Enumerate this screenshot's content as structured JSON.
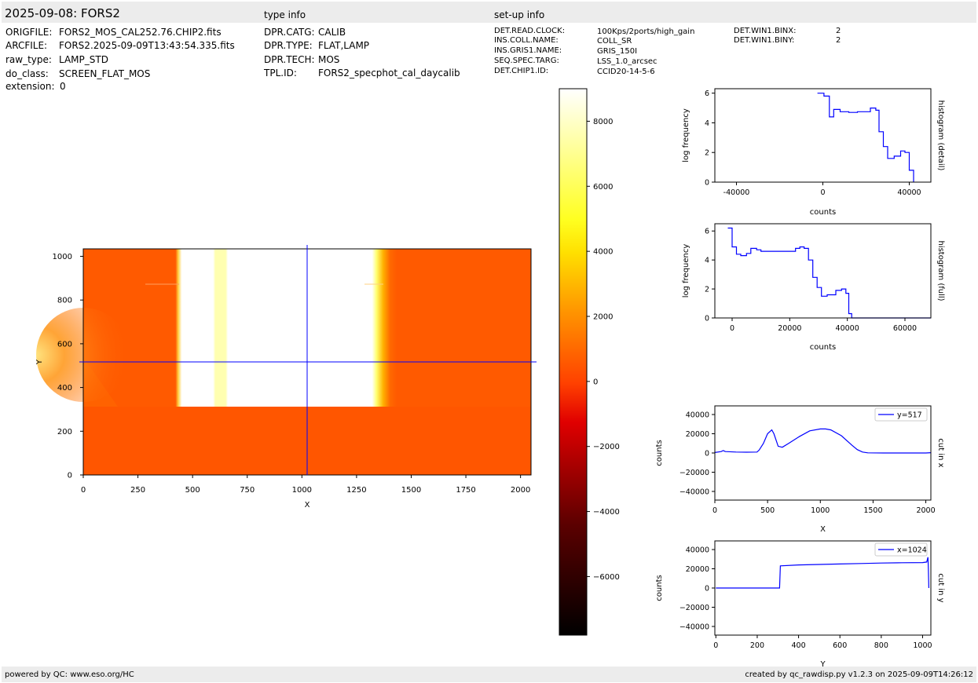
{
  "header": {
    "title": "2025-09-08: FORS2",
    "type_info_label": "type info",
    "setup_info_label": "set-up info"
  },
  "file_info": [
    {
      "key": "ORIGFILE:",
      "value": "FORS2_MOS_CAL252.76.CHIP2.fits"
    },
    {
      "key": "ARCFILE:",
      "value": "FORS2.2025-09-09T13:43:54.335.fits"
    },
    {
      "key": "raw_type:",
      "value": "LAMP_STD"
    },
    {
      "key": "do_class:",
      "value": "SCREEN_FLAT_MOS"
    },
    {
      "key": "extension:",
      "value": "0"
    }
  ],
  "type_info": [
    {
      "key": "DPR.CATG:",
      "value": "CALIB"
    },
    {
      "key": "DPR.TYPE:",
      "value": "FLAT,LAMP"
    },
    {
      "key": "DPR.TECH:",
      "value": "MOS"
    },
    {
      "key": "TPL.ID:",
      "value": "FORS2_specphot_cal_daycalib"
    }
  ],
  "setup_info": [
    {
      "key": "DET.READ.CLOCK:",
      "value": "100Kps/2ports/high_gain"
    },
    {
      "key": "INS.COLL.NAME:",
      "value": "COLL_SR"
    },
    {
      "key": "INS.GRIS1.NAME:",
      "value": "GRIS_150I"
    },
    {
      "key": "SEQ.SPEC.TARG:",
      "value": "LSS_1.0_arcsec"
    },
    {
      "key": "DET.CHIP1.ID:",
      "value": "CCID20-14-5-6"
    }
  ],
  "setup_info2": [
    {
      "key": "DET.WIN1.BINX:",
      "value": "2"
    },
    {
      "key": "DET.WIN1.BINY:",
      "value": "2"
    }
  ],
  "footer": {
    "left": "powered by QC: www.eso.org/HC",
    "right": "created by qc_rawdisp.py v1.2.3 on 2025-09-09T14:26:12"
  },
  "colors": {
    "line": "#0000ff",
    "frame": "#000000",
    "header_bg": "#ececec"
  },
  "chart_data": [
    {
      "type": "heatmap",
      "title": "",
      "xlabel": "X",
      "ylabel": "Y",
      "xlim": [
        0,
        2048
      ],
      "ylim": [
        0,
        1034
      ],
      "xticks": [
        "0",
        "250",
        "500",
        "750",
        "1000",
        "1250",
        "1500",
        "1750",
        "2000"
      ],
      "yticks": [
        "0",
        "200",
        "400",
        "600",
        "800",
        "1000"
      ],
      "colormap": "hot",
      "crosshair": {
        "x": 1024,
        "y": 517
      },
      "colorbar": {
        "range": [
          -7800,
          9000
        ],
        "ticks": [
          "8000",
          "6000",
          "4000",
          "2000",
          "0",
          "−2000",
          "−4000",
          "−6000"
        ]
      },
      "regions": [
        {
          "name": "background",
          "value": 1500
        },
        {
          "name": "bright slit band",
          "x": [
            440,
            1380
          ],
          "y": [
            310,
            1034
          ],
          "value": 9000
        }
      ]
    },
    {
      "type": "line",
      "ylabel": "log frequency",
      "xlabel": "counts",
      "side_label": "histogram (detail)",
      "xlim": [
        -50000,
        50000
      ],
      "ylim": [
        0,
        6.3
      ],
      "xticks": [
        "-40000",
        "0",
        "40000"
      ],
      "yticks": [
        "0",
        "2",
        "4",
        "6"
      ],
      "series": [
        {
          "x": [
            -2500,
            -500,
            500,
            3000,
            5000,
            8000,
            12000,
            16000,
            20000,
            22000,
            24500,
            26000,
            28000,
            30000,
            33000,
            36000,
            38000,
            40000,
            42000
          ],
          "values": [
            6.0,
            6.0,
            5.8,
            4.4,
            4.9,
            4.75,
            4.7,
            4.75,
            4.75,
            5.0,
            4.85,
            3.4,
            2.4,
            1.6,
            1.75,
            2.1,
            2.0,
            0.8,
            0
          ]
        }
      ]
    },
    {
      "type": "line",
      "ylabel": "log frequency",
      "xlabel": "counts",
      "side_label": "histogram (full)",
      "xlim": [
        -6000,
        69000
      ],
      "ylim": [
        0,
        6.5
      ],
      "xticks": [
        "0",
        "20000",
        "40000",
        "60000"
      ],
      "yticks": [
        "0",
        "2",
        "4",
        "6"
      ],
      "series": [
        {
          "x": [
            -1500,
            0,
            1500,
            3000,
            5000,
            6500,
            8500,
            10000,
            20000,
            22000,
            23500,
            25000,
            26500,
            28000,
            29500,
            31000,
            33000,
            36000,
            38000,
            39500,
            40500,
            41500,
            69000
          ],
          "values": [
            6.2,
            4.9,
            4.4,
            4.3,
            4.45,
            4.8,
            4.7,
            4.6,
            4.6,
            4.8,
            4.9,
            4.8,
            4.0,
            2.8,
            2.1,
            1.5,
            1.6,
            1.9,
            2.0,
            1.7,
            0.3,
            0,
            0
          ]
        }
      ]
    },
    {
      "type": "line",
      "ylabel": "counts",
      "xlabel": "X",
      "side_label": "cut in x",
      "xlim": [
        0,
        2048
      ],
      "ylim": [
        -49000,
        49000
      ],
      "xticks": [
        "0",
        "500",
        "1000",
        "1500",
        "2000"
      ],
      "yticks": [
        "40000",
        "20000",
        "0",
        "−20000",
        "−40000"
      ],
      "series": [
        {
          "name": "y=517",
          "x": [
            0,
            60,
            80,
            100,
            200,
            300,
            400,
            420,
            460,
            500,
            540,
            560,
            600,
            640,
            700,
            800,
            900,
            1000,
            1050,
            1100,
            1200,
            1300,
            1350,
            1400,
            1450,
            1600,
            1800,
            2000,
            2048
          ],
          "values": [
            500,
            1500,
            2500,
            1500,
            1000,
            800,
            1000,
            3000,
            10000,
            20000,
            24000,
            20000,
            7000,
            6000,
            10000,
            17000,
            23000,
            25000,
            25000,
            24000,
            18000,
            8000,
            3500,
            1000,
            200,
            0,
            0,
            0,
            300
          ]
        }
      ]
    },
    {
      "type": "line",
      "ylabel": "counts",
      "xlabel": "Y",
      "side_label": "cut in y",
      "xlim": [
        -5,
        1040
      ],
      "ylim": [
        -49000,
        49000
      ],
      "xticks": [
        "0",
        "200",
        "400",
        "600",
        "800",
        "1000"
      ],
      "yticks": [
        "40000",
        "20000",
        "0",
        "−20000",
        "−40000"
      ],
      "series": [
        {
          "name": "x=1024",
          "x": [
            0,
            100,
            200,
            300,
            308,
            312,
            400,
            500,
            600,
            700,
            800,
            900,
            1000,
            1020,
            1026,
            1028,
            1030
          ],
          "values": [
            0,
            0,
            0,
            0,
            0,
            23000,
            24000,
            24500,
            25000,
            25500,
            26000,
            26300,
            26500,
            27000,
            32000,
            20000,
            0
          ]
        }
      ]
    }
  ]
}
